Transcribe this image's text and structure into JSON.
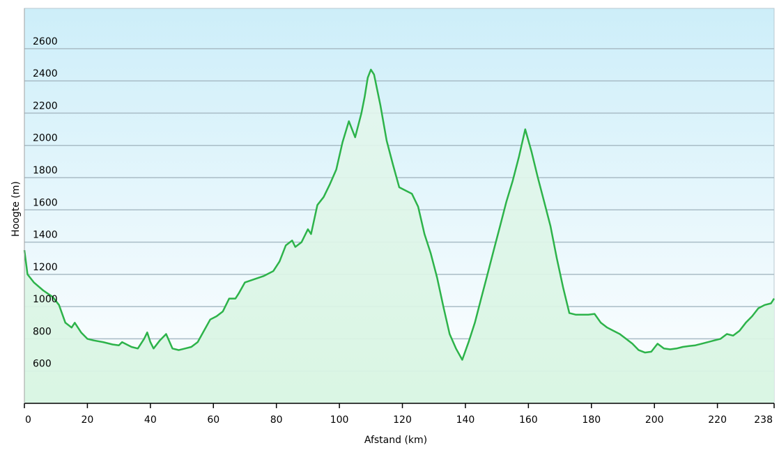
{
  "chart_data": {
    "type": "area",
    "xlabel": "Afstand  (km)",
    "ylabel": "Hoogte (m)",
    "x_ticks": [
      "0",
      "20",
      "40",
      "60",
      "80",
      "100",
      "120",
      "140",
      "160",
      "180",
      "200",
      "220",
      "238"
    ],
    "x_tick_values": [
      0,
      20,
      40,
      60,
      80,
      100,
      120,
      140,
      160,
      180,
      200,
      220,
      238
    ],
    "y_ticks": [
      "600",
      "800",
      "1000",
      "1200",
      "1400",
      "1600",
      "1800",
      "2000",
      "2200",
      "2400",
      "2600"
    ],
    "y_tick_values": [
      600,
      800,
      1000,
      1200,
      1400,
      1600,
      1800,
      2000,
      2200,
      2400,
      2600
    ],
    "xlim": [
      0,
      238
    ],
    "ylim": [
      400,
      2850
    ],
    "grid": true,
    "line_color": "#2db34a",
    "fill_color": "#d8f5e2",
    "background_top": "#cdeef9",
    "background_bottom": "#ffffff",
    "x": [
      0,
      1,
      3,
      6,
      9,
      11,
      13,
      15,
      16,
      18,
      20,
      22,
      25,
      28,
      30,
      31,
      34,
      36,
      38,
      39,
      40,
      41,
      43,
      45,
      47,
      49,
      51,
      53,
      55,
      57,
      59,
      61,
      63,
      65,
      67,
      68,
      70,
      73,
      76,
      79,
      81,
      83,
      85,
      86,
      88,
      90,
      91,
      93,
      95,
      97,
      99,
      101,
      103,
      105,
      107,
      108,
      109,
      110,
      111,
      113,
      115,
      117,
      119,
      121,
      123,
      125,
      127,
      129,
      131,
      133,
      135,
      137,
      139,
      141,
      143,
      145,
      147,
      149,
      151,
      153,
      155,
      157,
      159,
      161,
      163,
      165,
      167,
      169,
      171,
      173,
      175,
      177,
      179,
      181,
      183,
      185,
      187,
      189,
      191,
      193,
      195,
      197,
      199,
      201,
      203,
      205,
      207,
      209,
      211,
      213,
      215,
      217,
      219,
      221,
      223,
      225,
      227,
      229,
      231,
      233,
      235,
      237,
      238
    ],
    "elevation": [
      1350,
      1200,
      1150,
      1100,
      1060,
      1010,
      900,
      870,
      900,
      840,
      800,
      790,
      780,
      765,
      760,
      780,
      750,
      740,
      800,
      840,
      780,
      740,
      790,
      830,
      740,
      730,
      740,
      750,
      780,
      850,
      920,
      940,
      970,
      1050,
      1050,
      1080,
      1150,
      1170,
      1190,
      1220,
      1280,
      1380,
      1410,
      1370,
      1400,
      1480,
      1450,
      1630,
      1680,
      1760,
      1850,
      2020,
      2150,
      2050,
      2200,
      2300,
      2420,
      2470,
      2440,
      2250,
      2030,
      1880,
      1740,
      1720,
      1700,
      1620,
      1450,
      1330,
      1180,
      1000,
      830,
      740,
      670,
      780,
      900,
      1050,
      1200,
      1350,
      1500,
      1650,
      1780,
      1930,
      2100,
      1960,
      1800,
      1650,
      1500,
      1300,
      1120,
      960,
      950,
      950,
      950,
      955,
      900,
      870,
      850,
      830,
      800,
      770,
      730,
      715,
      720,
      770,
      740,
      735,
      740,
      750,
      755,
      760,
      770,
      780,
      790,
      800,
      830,
      820,
      850,
      900,
      940,
      990,
      1010,
      1020,
      1050
    ]
  }
}
